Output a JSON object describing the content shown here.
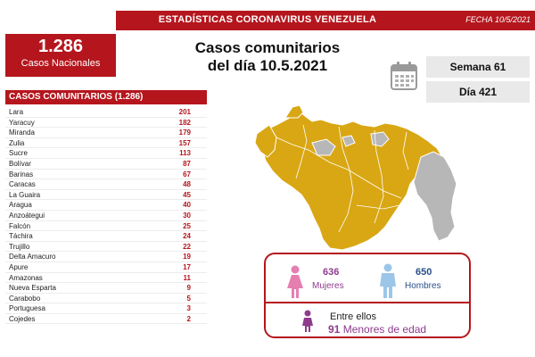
{
  "header": {
    "title": "ESTADÍSTICAS CORONAVIRUS VENEZUELA",
    "date": "FECHA 10/5/2021"
  },
  "total": {
    "value": "1.286",
    "label": "Casos Nacionales"
  },
  "headline": {
    "line1": "Casos comunitarios",
    "line2": "del día 10.5.2021"
  },
  "calendar": {
    "icon": "calendar-icon",
    "week": "Semana 61",
    "day": "Día 421"
  },
  "table": {
    "title": "CASOS COMUNITARIOS (1.286)",
    "rows": [
      {
        "state": "Lara",
        "cases": "201"
      },
      {
        "state": "Yaracuy",
        "cases": "182"
      },
      {
        "state": "Miranda",
        "cases": "179"
      },
      {
        "state": "Zulia",
        "cases": "157"
      },
      {
        "state": "Sucre",
        "cases": "113"
      },
      {
        "state": "Bolívar",
        "cases": "87"
      },
      {
        "state": "Barinas",
        "cases": "67"
      },
      {
        "state": "Caracas",
        "cases": "48"
      },
      {
        "state": "La Guaira",
        "cases": "45"
      },
      {
        "state": "Aragua",
        "cases": "40"
      },
      {
        "state": "Anzoátegui",
        "cases": "30"
      },
      {
        "state": "Falcón",
        "cases": "25"
      },
      {
        "state": "Táchira",
        "cases": "24"
      },
      {
        "state": "Trujillo",
        "cases": "22"
      },
      {
        "state": "Delta Amacuro",
        "cases": "19"
      },
      {
        "state": "Apure",
        "cases": "17"
      },
      {
        "state": "Amazonas",
        "cases": "11"
      },
      {
        "state": "Nueva Esparta",
        "cases": "9"
      },
      {
        "state": "Carabobo",
        "cases": "5"
      },
      {
        "state": "Portuguesa",
        "cases": "3"
      },
      {
        "state": "Cojedes",
        "cases": "2"
      }
    ]
  },
  "demographics": {
    "women": {
      "value": "636",
      "label": "Mujeres",
      "icon": "woman-icon",
      "color": "#e57fb0"
    },
    "men": {
      "value": "650",
      "label": "Hombres",
      "icon": "man-icon",
      "color": "#9cc6e8"
    },
    "minors": {
      "intro": "Entre ellos",
      "value": "91",
      "label": "Menores de edad",
      "icon": "child-icon",
      "color": "#8e3b8e"
    }
  },
  "map": {
    "icon": "venezuela-map-icon",
    "affected_color": "#d9a714",
    "unaffected_color": "#b7b7b7"
  },
  "colors": {
    "accent": "#b5161d",
    "panel": "#e9e9e9"
  }
}
